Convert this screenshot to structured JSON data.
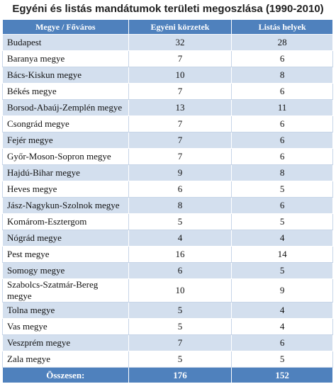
{
  "title": "Egyéni és listás mandátumok területi megoszlása (1990-2010)",
  "table": {
    "header": [
      "Megye / Főváros",
      "Egyéni körzetek",
      "Listás helyek"
    ],
    "rows": [
      [
        "Budapest",
        32,
        28
      ],
      [
        "Baranya megye",
        7,
        6
      ],
      [
        "Bács-Kiskun megye",
        10,
        8
      ],
      [
        "Békés megye",
        7,
        6
      ],
      [
        "Borsod-Abaúj-Zemplén megye",
        13,
        11
      ],
      [
        "Csongrád megye",
        7,
        6
      ],
      [
        "Fejér megye",
        7,
        6
      ],
      [
        "Győr-Moson-Sopron megye",
        7,
        6
      ],
      [
        "Hajdú-Bihar megye",
        9,
        8
      ],
      [
        "Heves megye",
        6,
        5
      ],
      [
        "Jász-Nagykun-Szolnok megye",
        8,
        6
      ],
      [
        "Komárom-Esztergom",
        5,
        5
      ],
      [
        "Nógrád megye",
        4,
        4
      ],
      [
        "Pest megye",
        16,
        14
      ],
      [
        "Somogy megye",
        6,
        5
      ],
      [
        "Szabolcs-Szatmár-Bereg megye",
        10,
        9
      ],
      [
        "Tolna megye",
        5,
        4
      ],
      [
        "Vas megye",
        5,
        4
      ],
      [
        "Veszprém megye",
        7,
        6
      ],
      [
        "Zala megye",
        5,
        5
      ]
    ],
    "footer": [
      "Összesen:",
      176,
      152
    ]
  }
}
